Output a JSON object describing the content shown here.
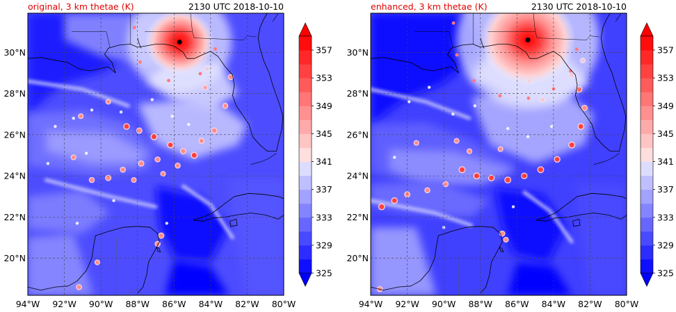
{
  "panels": [
    {
      "title_left": "original, 3 km thetae (K)",
      "title_right": "2130 UTC 2018-10-10",
      "storm_center": {
        "lon": -85.7,
        "lat": 30.5
      },
      "storm_radius_deg": 1.9
    },
    {
      "title_left": "enhanced, 3 km thetae (K)",
      "title_right": "2130 UTC 2018-10-10",
      "storm_center": {
        "lon": -85.4,
        "lat": 30.6
      },
      "storm_radius_deg": 2.6
    }
  ],
  "map_extent": {
    "lon_min": -94,
    "lon_max": -80,
    "lat_min": 18.2,
    "lat_max": 31.9
  },
  "lon_ticks": [
    {
      "value": -94,
      "label": "94°W"
    },
    {
      "value": -92,
      "label": "92°W"
    },
    {
      "value": -90,
      "label": "90°W"
    },
    {
      "value": -88,
      "label": "88°W"
    },
    {
      "value": -86,
      "label": "86°W"
    },
    {
      "value": -84,
      "label": "84°W"
    },
    {
      "value": -82,
      "label": "82°W"
    },
    {
      "value": -80,
      "label": "80°W"
    }
  ],
  "lat_ticks": [
    {
      "value": 20,
      "label": "20°N"
    },
    {
      "value": 22,
      "label": "22°N"
    },
    {
      "value": 24,
      "label": "24°N"
    },
    {
      "value": 26,
      "label": "26°N"
    },
    {
      "value": 28,
      "label": "28°N"
    },
    {
      "value": 30,
      "label": "30°N"
    }
  ],
  "colorbar": {
    "min": 325,
    "max": 359,
    "step": 2,
    "tick_labels": [
      "325",
      "329",
      "333",
      "337",
      "341",
      "345",
      "349",
      "353",
      "357"
    ],
    "extend": "both"
  },
  "colors": {
    "title_left": "#e00000",
    "grid": "#555555",
    "storm_eye": "#000000"
  }
}
